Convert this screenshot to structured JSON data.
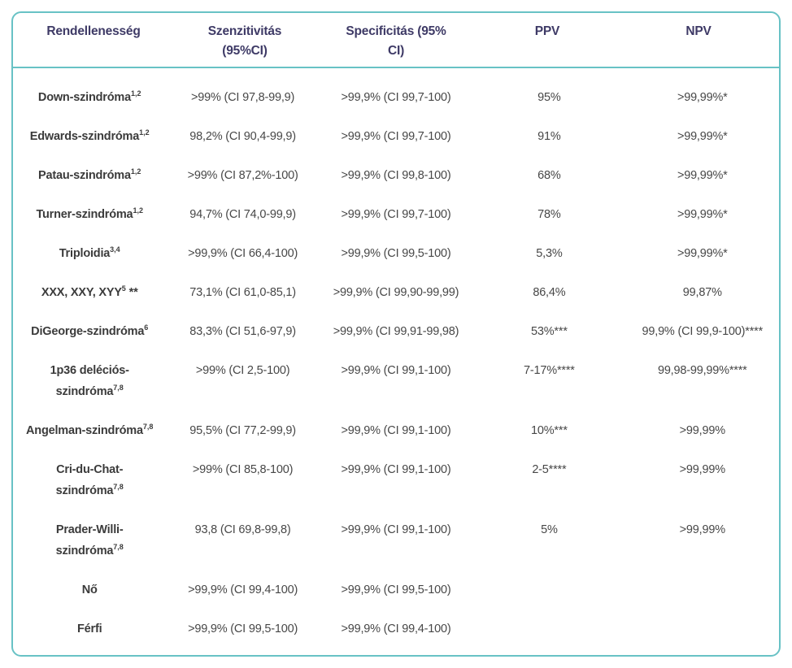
{
  "table": {
    "accent_border_color": "#68c2c5",
    "header_text_color": "#3e3a66",
    "body_text_color": "#474747",
    "columns": [
      "Rendellenesség",
      "Szenzitivitás\n(95%CI)",
      "Specificitás (95%\nCI)",
      "PPV",
      "NPV"
    ],
    "rows": [
      {
        "name": "Down-szindróma",
        "sup": "1,2",
        "suffix": "",
        "sens": ">99% (CI 97,8-99,9)",
        "spec": ">99,9% (CI 99,7-100)",
        "ppv": "95%",
        "npv": ">99,99%*"
      },
      {
        "name": "Edwards-szindróma",
        "sup": "1,2",
        "suffix": "",
        "sens": "98,2% (CI 90,4-99,9)",
        "spec": ">99,9% (CI 99,7-100)",
        "ppv": "91%",
        "npv": ">99,99%*"
      },
      {
        "name": "Patau-szindróma",
        "sup": "1,2",
        "suffix": "",
        "sens": ">99% (CI 87,2%-100)",
        "spec": ">99,9% (CI 99,8-100)",
        "ppv": "68%",
        "npv": ">99,99%*"
      },
      {
        "name": "Turner-szindróma",
        "sup": "1,2",
        "suffix": "",
        "sens": "94,7% (CI 74,0-99,9)",
        "spec": ">99,9% (CI 99,7-100)",
        "ppv": "78%",
        "npv": ">99,99%*"
      },
      {
        "name": "Triploidia",
        "sup": "3,4",
        "suffix": "",
        "sens": ">99,9% (CI 66,4-100)",
        "spec": ">99,9% (CI 99,5-100)",
        "ppv": "5,3%",
        "npv": ">99,99%*"
      },
      {
        "name": "XXX, XXY, XYY",
        "sup": "5",
        "suffix": " **",
        "sens": "73,1% (CI 61,0-85,1)",
        "spec": ">99,9% (CI 99,90-99,99)",
        "ppv": "86,4%",
        "npv": "99,87%"
      },
      {
        "name": "DiGeorge-szindróma",
        "sup": "6",
        "suffix": "",
        "sens": "83,3% (CI 51,6-97,9)",
        "spec": ">99,9% (CI 99,91-99,98)",
        "ppv": "53%***",
        "npv": "99,9% (CI 99,9-100)****"
      },
      {
        "name": "1p36 deléciós-\nszindróma",
        "sup": "7,8",
        "suffix": "",
        "sens": ">99% (CI 2,5-100)",
        "spec": ">99,9% (CI 99,1-100)",
        "ppv": "7-17%****",
        "npv": "99,98-99,99%****"
      },
      {
        "name": "Angelman-szindróma",
        "sup": "7,8",
        "suffix": "",
        "sens": "95,5% (CI 77,2-99,9)",
        "spec": ">99,9% (CI 99,1-100)",
        "ppv": "10%***",
        "npv": ">99,99%"
      },
      {
        "name": "Cri-du-Chat-\nszindróma",
        "sup": "7,8",
        "suffix": "",
        "sens": ">99% (CI 85,8-100)",
        "spec": ">99,9% (CI 99,1-100)",
        "ppv": "2-5****",
        "npv": ">99,99%"
      },
      {
        "name": "Prader-Willi-\nszindróma",
        "sup": "7,8",
        "suffix": "",
        "sens": "93,8 (CI 69,8-99,8)",
        "spec": ">99,9% (CI 99,1-100)",
        "ppv": "5%",
        "npv": ">99,99%"
      },
      {
        "name": "Nő",
        "sup": "",
        "suffix": "",
        "sens": ">99,9% (CI 99,4-100)",
        "spec": ">99,9% (CI 99,5-100)",
        "ppv": "",
        "npv": ""
      },
      {
        "name": "Férfi",
        "sup": "",
        "suffix": "",
        "sens": ">99,9% (CI 99,5-100)",
        "spec": ">99,9% (CI 99,4-100)",
        "ppv": "",
        "npv": ""
      }
    ]
  }
}
